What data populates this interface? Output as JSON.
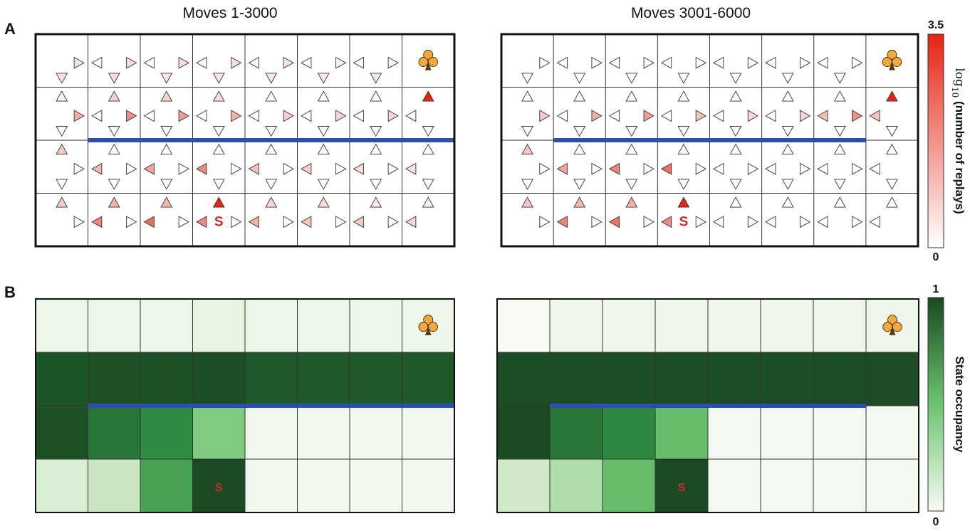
{
  "panel_labels": {
    "a": "A",
    "b": "B"
  },
  "titles": {
    "left": "Moves 1-3000",
    "right": "Moves 3001-6000"
  },
  "start_label": "S",
  "goal_icon": "club-icon",
  "colors": {
    "wall": "#2a4fae",
    "replay_low": "#ffffff",
    "replay_high": "#e52513",
    "occ_low": "#f7fbf4",
    "occ_high": "#1a4a22",
    "goal": "#f4a93c",
    "start": "#d62728"
  },
  "colorbar_replays": {
    "title_func": "log",
    "title_sub": "10",
    "title_rest": " (number of replays)",
    "max_label": "3.5",
    "min_label": "0",
    "min": 0,
    "max": 3.5
  },
  "colorbar_occupancy": {
    "title": "State occupancy",
    "max_label": "1",
    "min_label": "0",
    "min": 0,
    "max": 1
  },
  "chart_data": [
    {
      "type": "heatmap",
      "panel": "A",
      "title": "Moves 1-3000",
      "grid": {
        "rows": 4,
        "cols": 8
      },
      "value_label": "log10 (number of replays)",
      "range": [
        0,
        3.5
      ],
      "action_order": [
        "up",
        "left",
        "right",
        "down"
      ],
      "goal_cell": [
        0,
        7
      ],
      "start_cell": [
        3,
        3
      ],
      "wall": {
        "between_rows": [
          1,
          2
        ],
        "from_col": 1,
        "to_col": 7
      },
      "replays": [
        [
          [
            null,
            null,
            0.6,
            0.6
          ],
          [
            null,
            0,
            0.8,
            0.7
          ],
          [
            null,
            0,
            0.8,
            0.6
          ],
          [
            null,
            0,
            0.8,
            0.6
          ],
          [
            null,
            0,
            0.7,
            0.6
          ],
          [
            null,
            0,
            0.3,
            0.5
          ],
          [
            null,
            0,
            0.3,
            0.5
          ],
          [
            null,
            null,
            null,
            null
          ]
        ],
        [
          [
            0.3,
            null,
            1.6,
            0
          ],
          [
            1.1,
            0,
            2.1,
            0.1
          ],
          [
            1,
            0,
            1.9,
            0.1
          ],
          [
            0.8,
            0,
            1.6,
            0.2
          ],
          [
            0.1,
            0,
            1.1,
            0.1
          ],
          [
            0.1,
            0,
            0.9,
            0.1
          ],
          [
            0.1,
            0,
            0.9,
            0.1
          ],
          [
            3.5,
            0,
            null,
            0
          ]
        ],
        [
          [
            1.2,
            null,
            0,
            0
          ],
          [
            0,
            1.5,
            0,
            0
          ],
          [
            0,
            1.8,
            0,
            0
          ],
          [
            0,
            2.2,
            0,
            0
          ],
          [
            0,
            1.3,
            0,
            0
          ],
          [
            0,
            1.1,
            0,
            0
          ],
          [
            0,
            0.8,
            0,
            0
          ],
          [
            0,
            0.6,
            null,
            0
          ]
        ],
        [
          [
            1.2,
            null,
            0,
            null
          ],
          [
            1.6,
            2.3,
            0,
            null
          ],
          [
            1.5,
            2.6,
            0,
            null
          ],
          [
            3.5,
            2.2,
            0,
            null
          ],
          [
            0.9,
            1.6,
            0,
            null
          ],
          [
            0.8,
            1.3,
            0,
            null
          ],
          [
            0.6,
            1.2,
            0,
            null
          ],
          [
            0.3,
            0.9,
            null,
            null
          ]
        ]
      ]
    },
    {
      "type": "heatmap",
      "panel": "A",
      "title": "Moves 3001-6000",
      "grid": {
        "rows": 4,
        "cols": 8
      },
      "value_label": "log10 (number of replays)",
      "range": [
        0,
        3.5
      ],
      "action_order": [
        "up",
        "left",
        "right",
        "down"
      ],
      "goal_cell": [
        0,
        7
      ],
      "start_cell": [
        3,
        3
      ],
      "wall": {
        "between_rows": [
          1,
          2
        ],
        "from_col": 1,
        "to_col": 6
      },
      "replays": [
        [
          [
            null,
            null,
            0,
            0
          ],
          [
            null,
            0,
            0,
            0
          ],
          [
            null,
            0,
            0,
            0
          ],
          [
            null,
            0,
            0,
            0
          ],
          [
            null,
            0,
            0,
            0
          ],
          [
            null,
            0,
            0,
            0
          ],
          [
            null,
            0,
            0,
            0
          ],
          [
            null,
            null,
            null,
            null
          ]
        ],
        [
          [
            0,
            null,
            1.2,
            0
          ],
          [
            0,
            0,
            1.6,
            0
          ],
          [
            0,
            0,
            1.9,
            0
          ],
          [
            0,
            0,
            1.3,
            0
          ],
          [
            0,
            0,
            0.9,
            0
          ],
          [
            0,
            0,
            0.9,
            0
          ],
          [
            0,
            1.4,
            2.1,
            0
          ],
          [
            3.5,
            1.3,
            null,
            0
          ]
        ],
        [
          [
            1.3,
            null,
            0,
            0
          ],
          [
            0,
            1.8,
            0,
            0
          ],
          [
            0,
            2.3,
            0,
            0
          ],
          [
            0,
            2.6,
            0,
            0
          ],
          [
            0,
            0,
            0,
            0
          ],
          [
            0,
            0,
            0,
            0
          ],
          [
            0,
            0,
            0,
            0
          ],
          [
            0,
            0,
            null,
            0
          ]
        ],
        [
          [
            1.2,
            null,
            0,
            null
          ],
          [
            1.5,
            2.3,
            0,
            null
          ],
          [
            1.6,
            2.5,
            0,
            null
          ],
          [
            3.5,
            2.2,
            0,
            null
          ],
          [
            0,
            0,
            0,
            null
          ],
          [
            0,
            0,
            0,
            null
          ],
          [
            0,
            0,
            0,
            null
          ],
          [
            0,
            0,
            null,
            null
          ]
        ]
      ]
    },
    {
      "type": "heatmap",
      "panel": "B",
      "title": "Moves 1-3000",
      "grid": {
        "rows": 4,
        "cols": 8
      },
      "value_label": "State occupancy",
      "range": [
        0,
        1
      ],
      "goal_cell": [
        0,
        7
      ],
      "start_cell": [
        3,
        3
      ],
      "wall": {
        "between_rows": [
          1,
          2
        ],
        "from_col": 1,
        "to_col": 7
      },
      "values": [
        [
          0.05,
          0.05,
          0.05,
          0.08,
          0.05,
          0.05,
          0.05,
          0.05
        ],
        [
          0.95,
          0.97,
          0.97,
          0.98,
          0.93,
          0.93,
          0.93,
          0.93
        ],
        [
          0.97,
          0.8,
          0.7,
          0.4,
          0.03,
          0.03,
          0.03,
          0.03
        ],
        [
          0.15,
          0.22,
          0.6,
          1.0,
          0.03,
          0.03,
          0.03,
          0.03
        ]
      ]
    },
    {
      "type": "heatmap",
      "panel": "B",
      "title": "Moves 3001-6000",
      "grid": {
        "rows": 4,
        "cols": 8
      },
      "value_label": "State occupancy",
      "range": [
        0,
        1
      ],
      "goal_cell": [
        0,
        7
      ],
      "start_cell": [
        3,
        3
      ],
      "wall": {
        "between_rows": [
          1,
          2
        ],
        "from_col": 1,
        "to_col": 6
      },
      "values": [
        [
          0.0,
          0.04,
          0.04,
          0.04,
          0.04,
          0.04,
          0.04,
          0.04
        ],
        [
          0.98,
          0.98,
          0.98,
          0.98,
          0.98,
          0.98,
          0.98,
          0.99
        ],
        [
          1.0,
          0.8,
          0.72,
          0.48,
          0.02,
          0.02,
          0.02,
          0.02
        ],
        [
          0.2,
          0.28,
          0.48,
          1.0,
          0.02,
          0.02,
          0.02,
          0.02
        ]
      ]
    }
  ]
}
